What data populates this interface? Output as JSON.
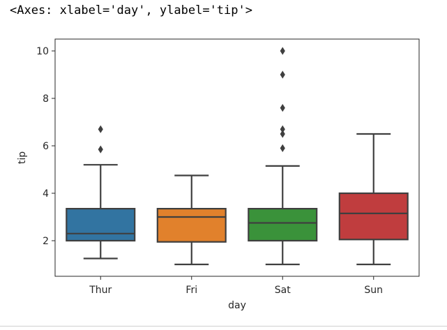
{
  "output_repr": "<Axes: xlabel='day', ylabel='tip'>",
  "chart_data": {
    "type": "box",
    "title": "",
    "xlabel": "day",
    "ylabel": "tip",
    "categories": [
      "Thur",
      "Fri",
      "Sat",
      "Sun"
    ],
    "ylim": [
      0.5,
      10.5
    ],
    "yticks": [
      2,
      4,
      6,
      8,
      10
    ],
    "grid": false,
    "series": [
      {
        "category": "Thur",
        "color": "#3274a1",
        "whisker_low": 1.25,
        "q1": 2.0,
        "median": 2.3,
        "q3": 3.35,
        "whisker_high": 5.2,
        "outliers": [
          5.85,
          6.7
        ]
      },
      {
        "category": "Fri",
        "color": "#e1812c",
        "whisker_low": 1.0,
        "q1": 1.95,
        "median": 3.0,
        "q3": 3.35,
        "whisker_high": 4.75,
        "outliers": []
      },
      {
        "category": "Sat",
        "color": "#3a923a",
        "whisker_low": 1.0,
        "q1": 2.0,
        "median": 2.75,
        "q3": 3.35,
        "whisker_high": 5.15,
        "outliers": [
          5.9,
          6.5,
          6.7,
          7.6,
          9.0,
          10.0
        ]
      },
      {
        "category": "Sun",
        "color": "#c03d3e",
        "whisker_low": 1.0,
        "q1": 2.05,
        "median": 3.15,
        "q3": 4.0,
        "whisker_high": 6.5,
        "outliers": []
      }
    ]
  }
}
